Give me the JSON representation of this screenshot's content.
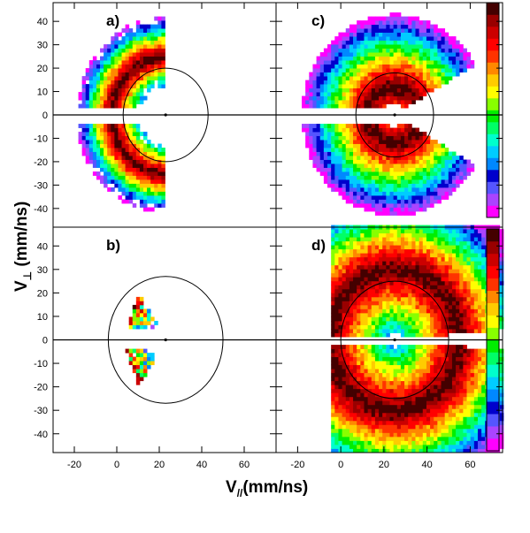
{
  "chart_data": {
    "type": "heatmap",
    "x_axis": {
      "label_base": "V",
      "label_sub": "//",
      "label_unit": "(mm/ns)",
      "range": [
        -30,
        75
      ],
      "ticks": [
        -20,
        0,
        20,
        40,
        60
      ]
    },
    "y_axis": {
      "label_base": "V",
      "label_sub": "⊥",
      "label_unit": "(mm/ns)",
      "range": [
        -48,
        48
      ],
      "ticks": [
        -40,
        -30,
        -20,
        -10,
        0,
        10,
        20,
        30,
        40
      ]
    },
    "panels": [
      {
        "label": "a)",
        "center": [
          23,
          0
        ],
        "circle_radius": 20,
        "shell": [
          12,
          42
        ],
        "cone_half_angle_deg": 90,
        "ridge_radius": 25,
        "gap_halfwidth": 3,
        "x_min": null,
        "x_max": 70
      },
      {
        "label": "c)",
        "center": [
          25,
          0
        ],
        "circle_radius": 18,
        "shell": [
          5,
          43
        ],
        "cone_half_angle_deg": 150,
        "ridge_radius": 12,
        "gap_halfwidth": 3,
        "x_min": null,
        "x_max": 70
      },
      {
        "label": "b)",
        "center": [
          23,
          0
        ],
        "circle_radius": 27,
        "shell": [
          8,
          55
        ],
        "cone_half_angle_deg": 58,
        "ridge_radius": 28,
        "gap_halfwidth": 3,
        "x_min": null,
        "x_max": 70
      },
      {
        "label": "d)",
        "center": [
          25,
          0
        ],
        "circle_radius": 25,
        "shell": [
          3,
          68
        ],
        "cone_half_angle_deg": 175,
        "ridge_radius": 30,
        "gap_halfwidth": 2,
        "x_min": -5,
        "x_max": 78
      }
    ],
    "colorbar": {
      "colors": [
        "#ff00ff",
        "#aa44ff",
        "#5555ff",
        "#0000cc",
        "#0088ff",
        "#00ccff",
        "#00ffcc",
        "#00ff66",
        "#00ee00",
        "#88ff00",
        "#ffff00",
        "#ffcc00",
        "#ff8800",
        "#ff3300",
        "#ff0000",
        "#cc0000",
        "#990000",
        "#440000"
      ]
    }
  }
}
